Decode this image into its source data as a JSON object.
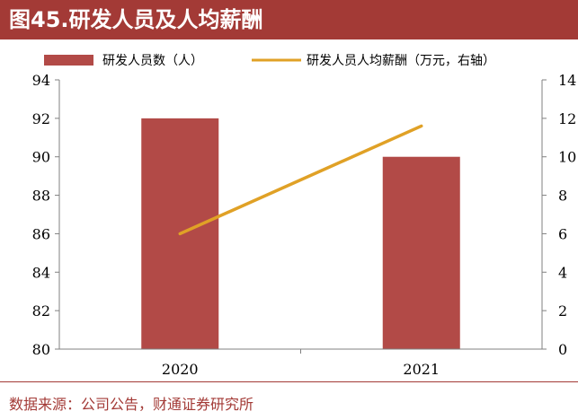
{
  "title": "图45.研发人员及人均薪酬",
  "source": "数据来源：公司公告，财通证券研究所",
  "colors": {
    "bar": "#b24a47",
    "line": "#e0a126",
    "accent": "#a33a36"
  },
  "chart_data": {
    "type": "bar",
    "categories": [
      "2020",
      "2021"
    ],
    "series": [
      {
        "name": "研发人员数（人）",
        "type": "bar",
        "axis": "left",
        "values": [
          92,
          90
        ]
      },
      {
        "name": "研发人员人均薪酬（万元，右轴）",
        "type": "line",
        "axis": "right",
        "values": [
          6,
          11.6
        ]
      }
    ],
    "ylim_left": [
      80,
      94
    ],
    "yticks_left": [
      "80",
      "82",
      "84",
      "86",
      "88",
      "90",
      "92",
      "94"
    ],
    "ylim_right": [
      0,
      14
    ],
    "yticks_right": [
      "0",
      "2",
      "4",
      "6",
      "8",
      "10",
      "12",
      "14"
    ],
    "grid": false,
    "legend": "top"
  }
}
